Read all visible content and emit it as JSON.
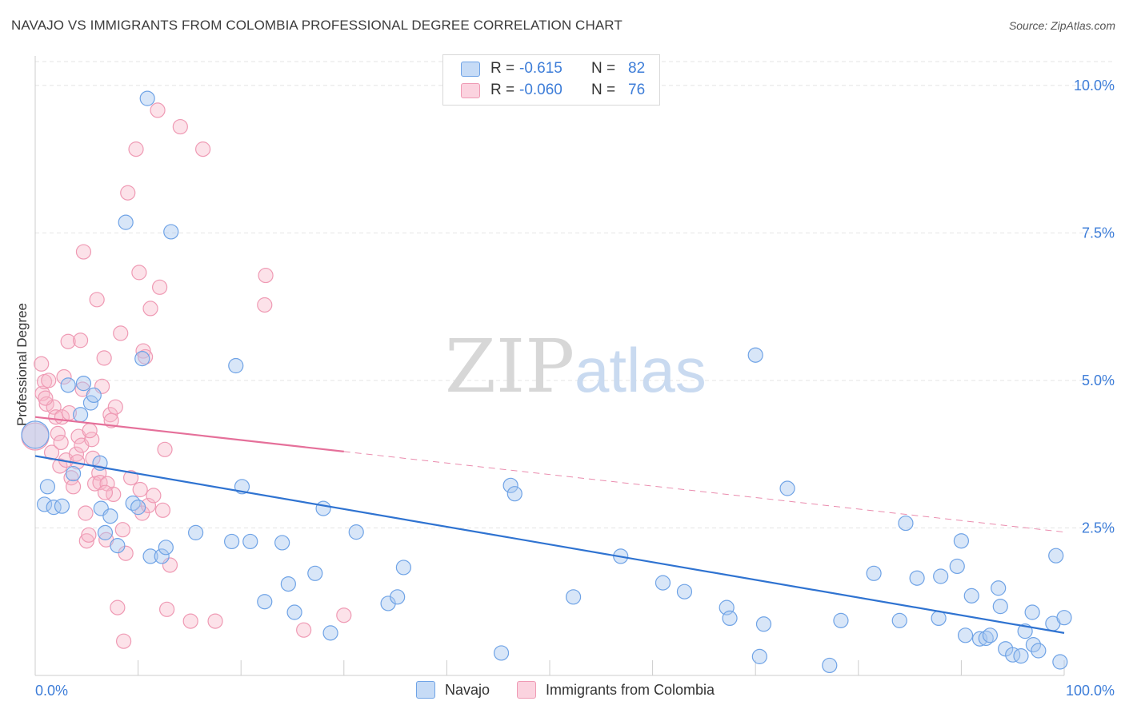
{
  "title": "NAVAJO VS IMMIGRANTS FROM COLOMBIA PROFESSIONAL DEGREE CORRELATION CHART",
  "source": "Source: ZipAtlas.com",
  "watermark": {
    "zip": "ZIP",
    "atlas": "atlas"
  },
  "legend_top": [
    {
      "r_label": "R =",
      "r_value": "-0.615",
      "n_label": "N =",
      "n_value": "82",
      "color": "#a9c8f0"
    },
    {
      "r_label": "R =",
      "r_value": "-0.060",
      "n_label": "N =",
      "n_value": "76",
      "color": "#f7b6c8"
    }
  ],
  "legend_bottom": [
    {
      "label": "Navajo",
      "color": "#a9c8f0"
    },
    {
      "label": "Immigrants from Colombia",
      "color": "#f7b6c8"
    }
  ],
  "chart_data": {
    "type": "scatter",
    "title": "NAVAJO VS IMMIGRANTS FROM COLOMBIA PROFESSIONAL DEGREE CORRELATION CHART",
    "xlabel": "",
    "ylabel": "Professional Degree",
    "xlim": [
      0,
      100
    ],
    "ylim": [
      0,
      10.5
    ],
    "x_tick_labels": [
      "0.0%",
      "100.0%"
    ],
    "y_ticks": [
      2.5,
      5.0,
      7.5,
      10.0
    ],
    "y_tick_labels": [
      "2.5%",
      "5.0%",
      "7.5%",
      "10.0%"
    ],
    "grid": true,
    "series": [
      {
        "name": "Navajo",
        "color": "#6fa3e6",
        "fill": "rgba(169,200,240,0.45)",
        "trend": {
          "x0": 0,
          "y0": 3.72,
          "x1": 100,
          "y1": 0.72,
          "color": "#2f73d1",
          "solid_to": 100
        },
        "points": [
          [
            0.0,
            4.08
          ],
          [
            1.2,
            3.2
          ],
          [
            0.9,
            2.9
          ],
          [
            1.8,
            2.85
          ],
          [
            2.6,
            2.87
          ],
          [
            3.2,
            4.92
          ],
          [
            3.7,
            3.42
          ],
          [
            4.4,
            4.42
          ],
          [
            4.7,
            4.95
          ],
          [
            5.4,
            4.62
          ],
          [
            5.7,
            4.75
          ],
          [
            6.3,
            3.6
          ],
          [
            6.4,
            2.83
          ],
          [
            6.8,
            2.42
          ],
          [
            7.3,
            2.7
          ],
          [
            8.0,
            2.2
          ],
          [
            8.8,
            7.68
          ],
          [
            9.5,
            2.92
          ],
          [
            10.0,
            2.85
          ],
          [
            10.4,
            5.37
          ],
          [
            10.9,
            9.78
          ],
          [
            11.2,
            2.02
          ],
          [
            12.3,
            2.02
          ],
          [
            12.7,
            2.17
          ],
          [
            13.2,
            7.52
          ],
          [
            15.6,
            2.42
          ],
          [
            19.1,
            2.27
          ],
          [
            19.5,
            5.25
          ],
          [
            20.1,
            3.2
          ],
          [
            20.9,
            2.27
          ],
          [
            22.3,
            1.25
          ],
          [
            24.0,
            2.25
          ],
          [
            24.6,
            1.55
          ],
          [
            25.2,
            1.07
          ],
          [
            27.2,
            1.73
          ],
          [
            28.0,
            2.83
          ],
          [
            28.7,
            0.72
          ],
          [
            31.2,
            2.43
          ],
          [
            34.3,
            1.22
          ],
          [
            35.2,
            1.33
          ],
          [
            35.8,
            1.83
          ],
          [
            45.3,
            0.38
          ],
          [
            46.2,
            3.22
          ],
          [
            46.6,
            3.08
          ],
          [
            52.3,
            1.33
          ],
          [
            56.9,
            2.02
          ],
          [
            61.0,
            1.57
          ],
          [
            63.1,
            1.42
          ],
          [
            67.2,
            1.15
          ],
          [
            67.5,
            0.97
          ],
          [
            70.0,
            5.43
          ],
          [
            70.4,
            0.32
          ],
          [
            70.8,
            0.87
          ],
          [
            73.1,
            3.17
          ],
          [
            77.2,
            0.17
          ],
          [
            78.3,
            0.93
          ],
          [
            81.5,
            1.73
          ],
          [
            84.0,
            0.93
          ],
          [
            84.6,
            2.58
          ],
          [
            85.7,
            1.65
          ],
          [
            87.8,
            0.97
          ],
          [
            88.0,
            1.68
          ],
          [
            89.6,
            1.85
          ],
          [
            90.0,
            2.28
          ],
          [
            90.4,
            0.68
          ],
          [
            91.0,
            1.35
          ],
          [
            91.8,
            0.62
          ],
          [
            92.4,
            0.63
          ],
          [
            92.8,
            0.68
          ],
          [
            93.6,
            1.48
          ],
          [
            93.8,
            1.17
          ],
          [
            94.3,
            0.45
          ],
          [
            95.0,
            0.35
          ],
          [
            95.8,
            0.33
          ],
          [
            96.2,
            0.75
          ],
          [
            96.9,
            1.07
          ],
          [
            97.0,
            0.52
          ],
          [
            97.5,
            0.42
          ],
          [
            98.9,
            0.88
          ],
          [
            99.2,
            2.03
          ],
          [
            99.6,
            0.23
          ],
          [
            100.0,
            0.98
          ]
        ]
      },
      {
        "name": "Immigrants from Colombia",
        "color": "#ef9ab4",
        "fill": "rgba(247,182,200,0.40)",
        "trend": {
          "x0": 0,
          "y0": 4.38,
          "x1": 100,
          "y1": 2.43,
          "color": "#e5709a",
          "solid_to": 30
        },
        "points": [
          [
            0.0,
            4.05
          ],
          [
            0.6,
            5.28
          ],
          [
            0.7,
            4.78
          ],
          [
            0.9,
            4.98
          ],
          [
            1.1,
            4.6
          ],
          [
            1.3,
            5.0
          ],
          [
            1.6,
            3.78
          ],
          [
            1.8,
            4.55
          ],
          [
            2.0,
            4.38
          ],
          [
            2.2,
            4.1
          ],
          [
            2.4,
            3.55
          ],
          [
            2.6,
            4.38
          ],
          [
            2.8,
            5.06
          ],
          [
            3.0,
            3.65
          ],
          [
            3.2,
            5.66
          ],
          [
            3.5,
            3.35
          ],
          [
            3.7,
            3.2
          ],
          [
            4.0,
            3.75
          ],
          [
            4.1,
            3.62
          ],
          [
            4.2,
            4.05
          ],
          [
            4.4,
            5.68
          ],
          [
            4.5,
            3.9
          ],
          [
            4.7,
            7.18
          ],
          [
            4.9,
            2.75
          ],
          [
            5.0,
            2.28
          ],
          [
            5.2,
            2.38
          ],
          [
            5.5,
            4.0
          ],
          [
            5.6,
            3.68
          ],
          [
            5.8,
            3.25
          ],
          [
            6.0,
            6.37
          ],
          [
            6.2,
            3.43
          ],
          [
            6.3,
            3.27
          ],
          [
            6.5,
            4.9
          ],
          [
            6.7,
            5.38
          ],
          [
            6.9,
            2.3
          ],
          [
            7.0,
            3.25
          ],
          [
            7.3,
            4.42
          ],
          [
            7.4,
            4.32
          ],
          [
            7.6,
            3.07
          ],
          [
            8.0,
            1.15
          ],
          [
            8.3,
            5.8
          ],
          [
            8.5,
            2.47
          ],
          [
            8.6,
            0.58
          ],
          [
            8.8,
            2.07
          ],
          [
            9.0,
            8.18
          ],
          [
            9.8,
            8.92
          ],
          [
            10.1,
            6.83
          ],
          [
            10.4,
            2.75
          ],
          [
            10.5,
            5.5
          ],
          [
            10.7,
            5.4
          ],
          [
            11.0,
            2.88
          ],
          [
            11.2,
            6.22
          ],
          [
            11.5,
            3.05
          ],
          [
            11.9,
            9.58
          ],
          [
            12.1,
            6.58
          ],
          [
            12.4,
            2.8
          ],
          [
            12.6,
            3.83
          ],
          [
            12.8,
            1.12
          ],
          [
            13.1,
            1.87
          ],
          [
            14.1,
            9.3
          ],
          [
            15.1,
            0.92
          ],
          [
            16.3,
            8.92
          ],
          [
            17.5,
            0.92
          ],
          [
            22.3,
            6.28
          ],
          [
            22.4,
            6.78
          ],
          [
            26.1,
            0.77
          ],
          [
            30.0,
            1.02
          ],
          [
            2.5,
            3.95
          ],
          [
            3.3,
            4.45
          ],
          [
            5.3,
            4.15
          ],
          [
            6.8,
            3.1
          ],
          [
            7.8,
            4.55
          ],
          [
            9.3,
            3.35
          ],
          [
            10.2,
            3.15
          ],
          [
            1.0,
            4.7
          ],
          [
            4.6,
            4.85
          ]
        ]
      }
    ]
  }
}
